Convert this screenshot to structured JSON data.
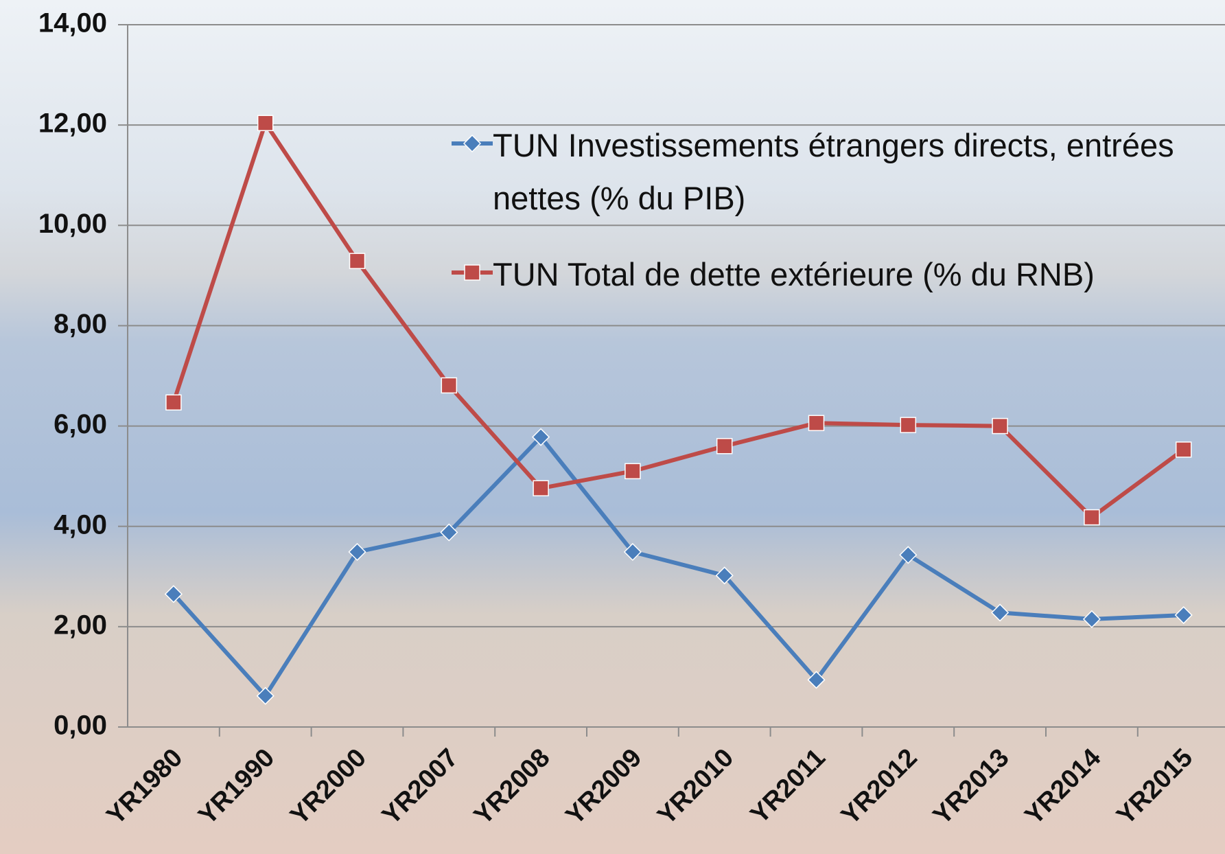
{
  "chart_data": {
    "type": "line",
    "categories": [
      "YR1980",
      "YR1990",
      "YR2000",
      "YR2007",
      "YR2008",
      "YR2009",
      "YR2010",
      "YR2011",
      "YR2012",
      "YR2013",
      "YR2014",
      "YR2015"
    ],
    "series": [
      {
        "name": "TUN Investissements étrangers directs, entrées nettes (% du PIB)",
        "color": "#4a7ebb",
        "marker": "diamond",
        "values": [
          2.65,
          0.62,
          3.49,
          3.88,
          5.78,
          3.49,
          3.02,
          0.94,
          3.43,
          2.28,
          2.15,
          2.23
        ]
      },
      {
        "name": "TUN Total de dette extérieure (% du RNB)",
        "color": "#be4b48",
        "marker": "square",
        "values": [
          6.47,
          12.04,
          9.29,
          6.81,
          4.76,
          5.1,
          5.6,
          6.06,
          6.02,
          6.0,
          4.18,
          5.53
        ]
      }
    ],
    "ylim": [
      0,
      14
    ],
    "yticks": [
      {
        "value": 0,
        "label": "0,00"
      },
      {
        "value": 2,
        "label": "2,00"
      },
      {
        "value": 4,
        "label": "4,00"
      },
      {
        "value": 6,
        "label": "6,00"
      },
      {
        "value": 8,
        "label": "8,00"
      },
      {
        "value": 10,
        "label": "10,00"
      },
      {
        "value": 12,
        "label": "12,00"
      },
      {
        "value": 14,
        "label": "14,00"
      }
    ],
    "grid": true
  }
}
